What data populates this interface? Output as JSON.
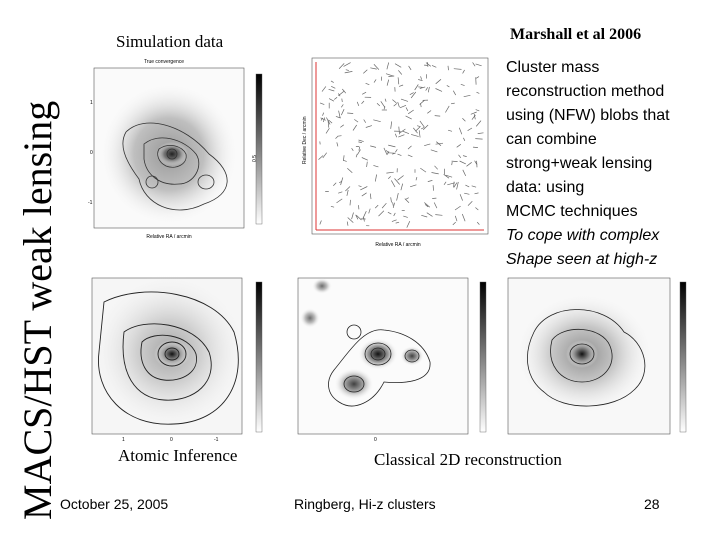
{
  "slide": {
    "vertical_title": "MACS/HST weak lensing",
    "label_simulation": "Simulation data",
    "label_marshall": "Marshall et al 2006",
    "description_lines": [
      "Cluster mass",
      "reconstruction method",
      "using (NFW) blobs that",
      "can combine",
      "strong+weak lensing",
      "data: using",
      "MCMC techniques"
    ],
    "description_italic_lines": [
      "To cope with complex",
      "Shape seen at high-z"
    ],
    "label_atomic": "Atomic Inference",
    "label_classical": "Classical 2D reconstruction"
  },
  "footer": {
    "date": "October 25, 2005",
    "venue": "Ringberg, Hi-z clusters",
    "page_number": "28"
  },
  "panels": {
    "true_convergence_title": "True convergence",
    "shear_xlabel": "Relative RA / arcmin",
    "shear_ylabel": "Relative Dec / arcmin",
    "axis_ticks": [
      "1",
      "0",
      "-1"
    ],
    "colorbar_ticks": [
      "0.5",
      "0"
    ]
  }
}
